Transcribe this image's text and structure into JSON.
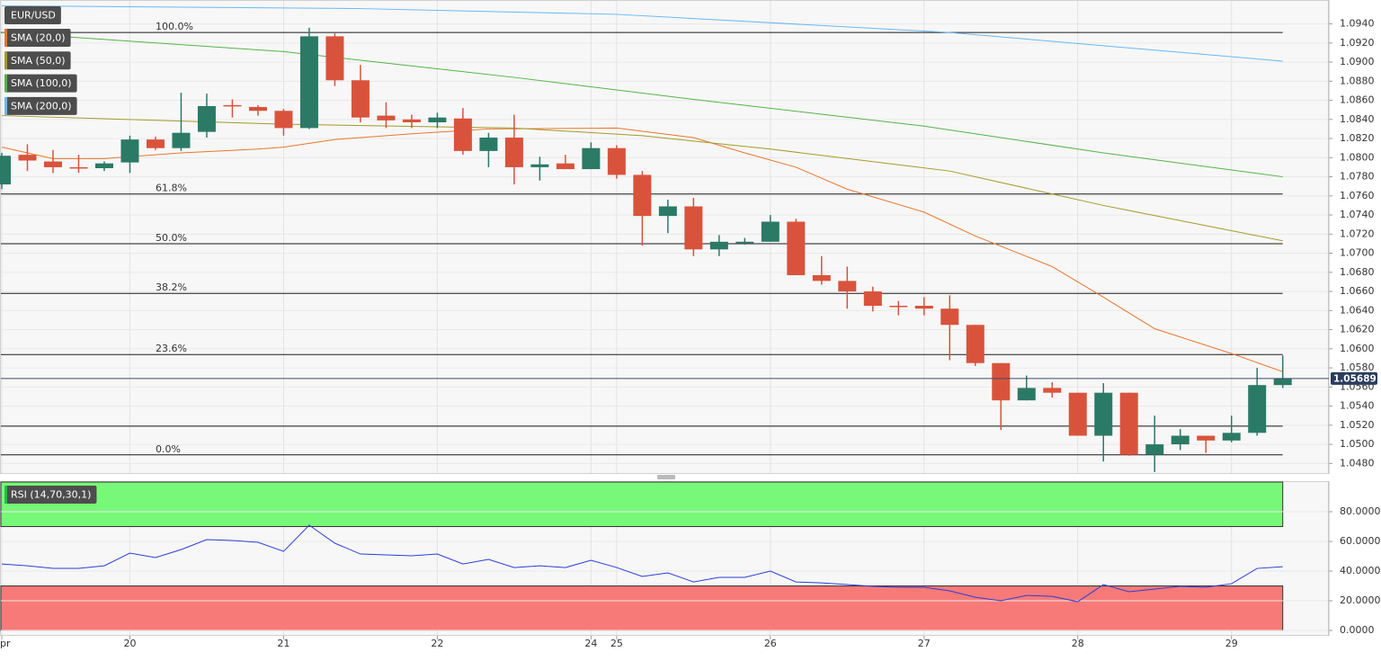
{
  "chart_data": [
    {
      "type": "candlestick",
      "title": "EUR/USD",
      "up_color": "#2b7a66",
      "down_color": "#d9533c",
      "open": [
        1.0772,
        1.0803,
        1.0796,
        1.079,
        1.0789,
        1.0795,
        1.0819,
        1.081,
        1.0827,
        1.0855,
        1.0853,
        1.0849,
        1.0831,
        1.0927,
        1.0881,
        1.0844,
        1.084,
        1.0837,
        1.0841,
        1.0807,
        1.0821,
        1.079,
        1.0794,
        1.0788,
        1.081,
        1.0782,
        1.0739,
        1.0749,
        1.0704,
        1.0712,
        1.0712,
        1.0733,
        1.0677,
        1.0671,
        1.066,
        1.0645,
        1.0645,
        1.0642,
        1.0625,
        1.0585,
        1.0546,
        1.0559,
        1.0554,
        1.0509,
        1.0554,
        1.0489,
        1.05,
        1.0509,
        1.0504,
        1.0512,
        1.0562
      ],
      "high": [
        1.0805,
        1.0814,
        1.0808,
        1.0803,
        1.0796,
        1.0823,
        1.0822,
        1.0868,
        1.0867,
        1.0861,
        1.0855,
        1.0851,
        1.0936,
        1.093,
        1.0897,
        1.0858,
        1.0845,
        1.0847,
        1.0852,
        1.0826,
        1.0845,
        1.0801,
        1.0803,
        1.0816,
        1.0813,
        1.0786,
        1.0756,
        1.0758,
        1.0719,
        1.0716,
        1.074,
        1.0736,
        1.0697,
        1.0686,
        1.0665,
        1.065,
        1.0654,
        1.0656,
        1.0625,
        1.0585,
        1.0572,
        1.0565,
        1.0554,
        1.0564,
        1.0554,
        1.053,
        1.0516,
        1.0509,
        1.053,
        1.058,
        1.0593
      ],
      "low": [
        1.0767,
        1.0786,
        1.0784,
        1.0784,
        1.0786,
        1.0784,
        1.0808,
        1.0807,
        1.0821,
        1.0842,
        1.0844,
        1.0823,
        1.083,
        1.0875,
        1.0837,
        1.0831,
        1.0831,
        1.0831,
        1.0803,
        1.079,
        1.0772,
        1.0776,
        1.0788,
        1.0788,
        1.0778,
        1.0708,
        1.0721,
        1.0697,
        1.0697,
        1.0709,
        1.0712,
        1.0677,
        1.0667,
        1.0642,
        1.0639,
        1.0635,
        1.0635,
        1.0588,
        1.0582,
        1.0515,
        1.0546,
        1.0549,
        1.0509,
        1.0482,
        1.0488,
        1.0471,
        1.0494,
        1.0491,
        1.0502,
        1.0509,
        1.0559
      ],
      "close": [
        1.0802,
        1.0797,
        1.079,
        1.0789,
        1.0794,
        1.0819,
        1.081,
        1.0826,
        1.0854,
        1.0854,
        1.0849,
        1.0831,
        1.0927,
        1.0881,
        1.0842,
        1.0839,
        1.0837,
        1.0842,
        1.0807,
        1.0821,
        1.079,
        1.0793,
        1.0788,
        1.081,
        1.0782,
        1.0739,
        1.0749,
        1.0704,
        1.0712,
        1.0712,
        1.0733,
        1.0677,
        1.0671,
        1.066,
        1.0645,
        1.0644,
        1.0642,
        1.0625,
        1.0585,
        1.0546,
        1.0559,
        1.0554,
        1.0509,
        1.0554,
        1.0489,
        1.05,
        1.0509,
        1.0504,
        1.0512,
        1.0562,
        1.0569
      ],
      "series": [
        {
          "name": "SMA (20,0)",
          "color": "#e8762d",
          "x": [
            0,
            2,
            4,
            7,
            10,
            11,
            13,
            16,
            19,
            24,
            27,
            29,
            31,
            33,
            36,
            38,
            41,
            43,
            45,
            48,
            50
          ],
          "values": [
            1.0811,
            1.0799,
            1.0799,
            1.0805,
            1.0809,
            1.0811,
            1.0819,
            1.0825,
            1.083,
            1.0831,
            1.0821,
            1.0805,
            1.079,
            1.0767,
            1.0743,
            1.0718,
            1.0686,
            1.0654,
            1.0621,
            1.0595,
            1.0576
          ]
        },
        {
          "name": "SMA (50,0)",
          "color": "#a39a2a",
          "x": [
            0,
            11,
            20,
            25,
            30,
            37,
            43,
            50
          ],
          "values": [
            1.0844,
            1.0835,
            1.0831,
            1.0823,
            1.0809,
            1.0786,
            1.075,
            1.0713
          ]
        },
        {
          "name": "SMA (100,0)",
          "color": "#55b24a",
          "x": [
            0,
            11,
            20,
            27,
            36,
            43,
            50
          ],
          "values": [
            1.0931,
            1.0911,
            1.0884,
            1.0861,
            1.0833,
            1.0805,
            1.078
          ]
        },
        {
          "name": "SMA (200,0)",
          "color": "#6ab8f0",
          "x": [
            0,
            14,
            24,
            37,
            50
          ],
          "values": [
            1.0959,
            1.0956,
            1.095,
            1.0931,
            1.0901
          ]
        }
      ],
      "fib_levels": [
        {
          "value": 1.0931,
          "label": "100.0%"
        },
        {
          "value": 1.0762,
          "label": "61.8%"
        },
        {
          "value": 1.071,
          "label": "50.0%"
        },
        {
          "value": 1.0658,
          "label": "38.2%"
        },
        {
          "value": 1.0594,
          "label": "23.6%"
        },
        {
          "value": 1.0519,
          "label": null
        },
        {
          "value": 1.0489,
          "label": "0.0%"
        }
      ],
      "last_price": 1.05689,
      "xlim": [
        -0.07,
        51.8
      ],
      "xticks": [
        {
          "value": 0,
          "label": "Apr"
        },
        {
          "value": 5,
          "label": "20"
        },
        {
          "value": 11,
          "label": "21"
        },
        {
          "value": 17,
          "label": "22"
        },
        {
          "value": 23,
          "label": "24"
        },
        {
          "value": 24,
          "label": "25"
        },
        {
          "value": 30,
          "label": "26"
        },
        {
          "value": 36,
          "label": "27"
        },
        {
          "value": 42,
          "label": "28"
        },
        {
          "value": 48,
          "label": "29"
        }
      ],
      "ylim": [
        1.0469,
        1.0965
      ],
      "yticks": [
        {
          "value": 1.048,
          "label": "1.0480"
        },
        {
          "value": 1.05,
          "label": "1.0500"
        },
        {
          "value": 1.052,
          "label": "1.0520"
        },
        {
          "value": 1.054,
          "label": "1.0540"
        },
        {
          "value": 1.056,
          "label": "1.0560"
        },
        {
          "value": 1.058,
          "label": "1.0580"
        },
        {
          "value": 1.06,
          "label": "1.0600"
        },
        {
          "value": 1.062,
          "label": "1.0620"
        },
        {
          "value": 1.064,
          "label": "1.0640"
        },
        {
          "value": 1.066,
          "label": "1.0660"
        },
        {
          "value": 1.068,
          "label": "1.0680"
        },
        {
          "value": 1.07,
          "label": "1.0700"
        },
        {
          "value": 1.072,
          "label": "1.0720"
        },
        {
          "value": 1.074,
          "label": "1.0740"
        },
        {
          "value": 1.076,
          "label": "1.0760"
        },
        {
          "value": 1.078,
          "label": "1.0780"
        },
        {
          "value": 1.08,
          "label": "1.0800"
        },
        {
          "value": 1.082,
          "label": "1.0820"
        },
        {
          "value": 1.084,
          "label": "1.0840"
        },
        {
          "value": 1.086,
          "label": "1.0860"
        },
        {
          "value": 1.088,
          "label": "1.0880"
        },
        {
          "value": 1.09,
          "label": "1.0900"
        },
        {
          "value": 1.092,
          "label": "1.0920"
        },
        {
          "value": 1.094,
          "label": "1.0940"
        }
      ],
      "grid": true
    },
    {
      "type": "line",
      "series": [
        {
          "name": "RSI (14,70,30,1)",
          "color": "#2a3fd6",
          "values": [
            44.8,
            43.6,
            41.8,
            41.8,
            43.6,
            52.1,
            49.1,
            54.5,
            61.2,
            60.6,
            59.4,
            53.3,
            70.9,
            58.8,
            51.5,
            50.9,
            50.3,
            51.5,
            44.8,
            47.9,
            42.4,
            43.6,
            42.4,
            47.3,
            42.4,
            36.4,
            38.8,
            32.7,
            35.8,
            35.8,
            40.0,
            32.7,
            32.1,
            30.9,
            29.7,
            29.1,
            29.1,
            26.7,
            22.4,
            20.0,
            23.6,
            23.0,
            19.4,
            30.9,
            26.1,
            27.9,
            29.7,
            29.1,
            31.5,
            41.8,
            43.0
          ]
        }
      ],
      "zones": [
        {
          "from": 70,
          "to": 100,
          "color": "#78f878"
        },
        {
          "from": 0,
          "to": 30,
          "color": "#f87a78"
        }
      ],
      "ylim": [
        -3.6,
        100.6
      ],
      "yticks": [
        {
          "value": 0,
          "label": "0.0000"
        },
        {
          "value": 20,
          "label": "20.0000"
        },
        {
          "value": 40,
          "label": "40.0000"
        },
        {
          "value": 60,
          "label": "60.0000"
        },
        {
          "value": 80,
          "label": "80.0000"
        }
      ],
      "grid": true
    }
  ]
}
